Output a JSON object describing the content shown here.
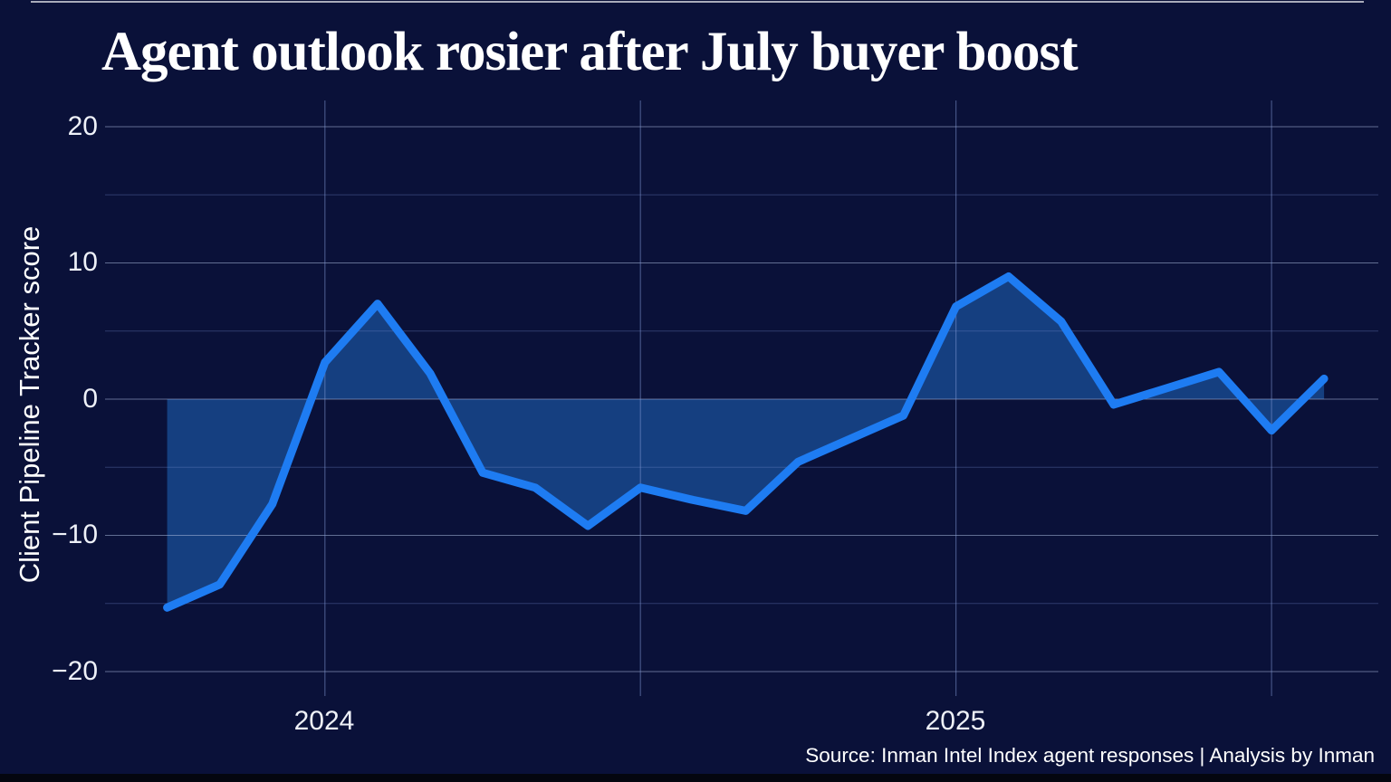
{
  "title": "Agent outlook rosier after July buyer boost",
  "source_note": "Source: Inman Intel Index agent responses | Analysis by Inman",
  "colors": {
    "background": "#0a1139",
    "line": "#1e7cf2",
    "fill": "#153f80",
    "grid_major": "rgba(170,185,220,0.55)",
    "grid_minor": "rgba(110,135,200,0.36)",
    "grid_vertical": "rgba(125,150,210,0.50)",
    "text": "#ffffff",
    "tick_text": "#eef1f8",
    "hairline": "#ffffff",
    "bottom_strip": "#04060f"
  },
  "chart_data": {
    "type": "area",
    "title": "Agent outlook rosier after July buyer boost",
    "ylabel": "Client Pipeline Tracker score",
    "xlabel": "",
    "ylim": [
      -20,
      20
    ],
    "grid": true,
    "legend": "none",
    "x": [
      "Oct 2023",
      "Nov 2023",
      "Dec 2023",
      "Jan 2024",
      "Feb 2024",
      "Mar 2024",
      "Apr 2024",
      "May 2024",
      "Jun 2024",
      "Jul 2024",
      "Aug 2024",
      "Sep 2024",
      "Oct 2024",
      "Nov 2024",
      "Dec 2024",
      "Jan 2025",
      "Feb 2025",
      "Mar 2025",
      "Apr 2025",
      "May 2025",
      "Jun 2025",
      "Jul 2025",
      "Aug 2025"
    ],
    "values": [
      -15.3,
      -13.6,
      -7.7,
      2.7,
      7.0,
      1.9,
      -5.4,
      -6.5,
      -9.3,
      -6.5,
      -7.4,
      -8.2,
      -4.6,
      -2.9,
      -1.2,
      6.8,
      9.0,
      5.7,
      -0.4,
      0.8,
      2.0,
      -2.3,
      1.5
    ],
    "baseline": 0,
    "y_tick_values": [
      20,
      10,
      0,
      -10,
      -20
    ],
    "y_tick_labels": [
      "20",
      "10",
      "0",
      "−10",
      "−20"
    ],
    "y_minor_tick_values": [
      15,
      5,
      -5,
      -15
    ],
    "x_tick_labels": [
      "2024",
      "2025"
    ],
    "source": "Source: Inman Intel Index agent responses | Analysis by Inman"
  }
}
